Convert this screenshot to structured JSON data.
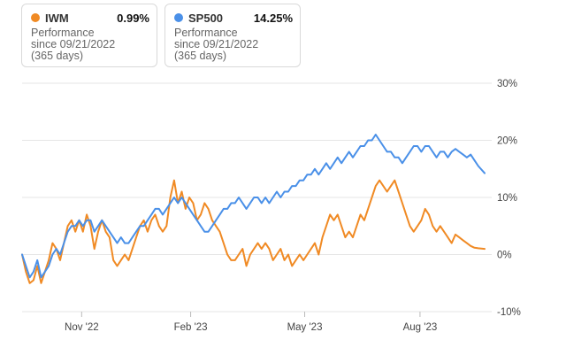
{
  "legend": [
    {
      "ticker": "IWM",
      "performance": "0.99%",
      "label": "Performance",
      "since": "since 09/21/2022",
      "days": "(365 days)",
      "color": "#f08a24"
    },
    {
      "ticker": "SP500",
      "performance": "14.25%",
      "label": "Performance",
      "since": "since 09/21/2022",
      "days": "(365 days)",
      "color": "#4a90e8"
    }
  ],
  "chart_data": {
    "type": "line",
    "x_ticks": [
      "Nov '22",
      "Feb '23",
      "May '23",
      "Aug '23"
    ],
    "y_ticks": [
      "30%",
      "20%",
      "10%",
      "0%",
      "-10%"
    ],
    "ylim": [
      -10,
      30
    ],
    "grid": true,
    "series": [
      {
        "name": "IWM",
        "color": "#f08a24",
        "points": [
          [
            0,
            0
          ],
          [
            3,
            -3
          ],
          [
            6,
            -5
          ],
          [
            9,
            -4.5
          ],
          [
            12,
            -2
          ],
          [
            15,
            -5
          ],
          [
            18,
            -3
          ],
          [
            21,
            -1
          ],
          [
            24,
            2
          ],
          [
            27,
            1
          ],
          [
            30,
            -1
          ],
          [
            33,
            2
          ],
          [
            36,
            5
          ],
          [
            39,
            6
          ],
          [
            42,
            4
          ],
          [
            45,
            6
          ],
          [
            48,
            4
          ],
          [
            51,
            7
          ],
          [
            54,
            5
          ],
          [
            57,
            1
          ],
          [
            60,
            4
          ],
          [
            63,
            6
          ],
          [
            66,
            4
          ],
          [
            69,
            3
          ],
          [
            72,
            -1
          ],
          [
            75,
            -2
          ],
          [
            78,
            -1
          ],
          [
            81,
            0
          ],
          [
            84,
            -1
          ],
          [
            87,
            1
          ],
          [
            90,
            3
          ],
          [
            93,
            5
          ],
          [
            96,
            6
          ],
          [
            99,
            4
          ],
          [
            102,
            6
          ],
          [
            105,
            7
          ],
          [
            108,
            5
          ],
          [
            111,
            4
          ],
          [
            114,
            5
          ],
          [
            117,
            10
          ],
          [
            120,
            13
          ],
          [
            123,
            9
          ],
          [
            126,
            11
          ],
          [
            129,
            8
          ],
          [
            132,
            10
          ],
          [
            135,
            9
          ],
          [
            138,
            6
          ],
          [
            141,
            7
          ],
          [
            144,
            9
          ],
          [
            147,
            8
          ],
          [
            150,
            6
          ],
          [
            153,
            5
          ],
          [
            156,
            4
          ],
          [
            159,
            2
          ],
          [
            162,
            0
          ],
          [
            165,
            -1
          ],
          [
            168,
            -1
          ],
          [
            171,
            0
          ],
          [
            174,
            1
          ],
          [
            177,
            -2
          ],
          [
            180,
            0
          ],
          [
            183,
            1
          ],
          [
            186,
            2
          ],
          [
            189,
            1
          ],
          [
            192,
            2
          ],
          [
            195,
            1
          ],
          [
            198,
            -1
          ],
          [
            201,
            0
          ],
          [
            204,
            1
          ],
          [
            207,
            -1
          ],
          [
            210,
            0
          ],
          [
            213,
            -2
          ],
          [
            216,
            -1
          ],
          [
            219,
            0
          ],
          [
            222,
            -1
          ],
          [
            225,
            0
          ],
          [
            228,
            1
          ],
          [
            231,
            2
          ],
          [
            234,
            0
          ],
          [
            237,
            3
          ],
          [
            240,
            5
          ],
          [
            243,
            7
          ],
          [
            246,
            6
          ],
          [
            249,
            7
          ],
          [
            252,
            5
          ],
          [
            255,
            3
          ],
          [
            258,
            4
          ],
          [
            261,
            3
          ],
          [
            264,
            5
          ],
          [
            267,
            7
          ],
          [
            270,
            6
          ],
          [
            273,
            8
          ],
          [
            276,
            10
          ],
          [
            279,
            12
          ],
          [
            282,
            13
          ],
          [
            285,
            12
          ],
          [
            288,
            11
          ],
          [
            291,
            12
          ],
          [
            294,
            13
          ],
          [
            297,
            11
          ],
          [
            300,
            9
          ],
          [
            303,
            7
          ],
          [
            306,
            5
          ],
          [
            309,
            4
          ],
          [
            312,
            5
          ],
          [
            315,
            6
          ],
          [
            318,
            8
          ],
          [
            321,
            7
          ],
          [
            324,
            5
          ],
          [
            327,
            4
          ],
          [
            330,
            5
          ],
          [
            333,
            4
          ],
          [
            336,
            3
          ],
          [
            339,
            2
          ],
          [
            342,
            3.5
          ],
          [
            345,
            3
          ],
          [
            348,
            2.5
          ],
          [
            351,
            2
          ],
          [
            354,
            1.5
          ],
          [
            357,
            1.2
          ],
          [
            360,
            1.1
          ],
          [
            365,
            0.99
          ]
        ]
      },
      {
        "name": "SP500",
        "color": "#4a90e8",
        "points": [
          [
            0,
            0
          ],
          [
            3,
            -2
          ],
          [
            6,
            -4
          ],
          [
            9,
            -3
          ],
          [
            12,
            -1
          ],
          [
            15,
            -4
          ],
          [
            18,
            -3
          ],
          [
            21,
            -2
          ],
          [
            24,
            0
          ],
          [
            27,
            1
          ],
          [
            30,
            0
          ],
          [
            33,
            2
          ],
          [
            36,
            4
          ],
          [
            39,
            5
          ],
          [
            42,
            5
          ],
          [
            45,
            6
          ],
          [
            48,
            5
          ],
          [
            51,
            6
          ],
          [
            54,
            6
          ],
          [
            57,
            4
          ],
          [
            60,
            5
          ],
          [
            63,
            6
          ],
          [
            66,
            5
          ],
          [
            69,
            4
          ],
          [
            72,
            3
          ],
          [
            75,
            2
          ],
          [
            78,
            3
          ],
          [
            81,
            2
          ],
          [
            84,
            2
          ],
          [
            87,
            3
          ],
          [
            90,
            4
          ],
          [
            93,
            5
          ],
          [
            96,
            5
          ],
          [
            99,
            6
          ],
          [
            102,
            7
          ],
          [
            105,
            8
          ],
          [
            108,
            8
          ],
          [
            111,
            7
          ],
          [
            114,
            8
          ],
          [
            117,
            9
          ],
          [
            120,
            10
          ],
          [
            123,
            9
          ],
          [
            126,
            10
          ],
          [
            129,
            9
          ],
          [
            132,
            8
          ],
          [
            135,
            7
          ],
          [
            138,
            6
          ],
          [
            141,
            5
          ],
          [
            144,
            4
          ],
          [
            147,
            4
          ],
          [
            150,
            5
          ],
          [
            153,
            6
          ],
          [
            156,
            7
          ],
          [
            159,
            8
          ],
          [
            162,
            8
          ],
          [
            165,
            9
          ],
          [
            168,
            9
          ],
          [
            171,
            10
          ],
          [
            174,
            9
          ],
          [
            177,
            8
          ],
          [
            180,
            9
          ],
          [
            183,
            10
          ],
          [
            186,
            10
          ],
          [
            189,
            9
          ],
          [
            192,
            10
          ],
          [
            195,
            9
          ],
          [
            198,
            10
          ],
          [
            201,
            11
          ],
          [
            204,
            10
          ],
          [
            207,
            11
          ],
          [
            210,
            11
          ],
          [
            213,
            12
          ],
          [
            216,
            12
          ],
          [
            219,
            13
          ],
          [
            222,
            13
          ],
          [
            225,
            14
          ],
          [
            228,
            14
          ],
          [
            231,
            15
          ],
          [
            234,
            14
          ],
          [
            237,
            15
          ],
          [
            240,
            16
          ],
          [
            243,
            15
          ],
          [
            246,
            16
          ],
          [
            249,
            17
          ],
          [
            252,
            16
          ],
          [
            255,
            17
          ],
          [
            258,
            18
          ],
          [
            261,
            17
          ],
          [
            264,
            18
          ],
          [
            267,
            19
          ],
          [
            270,
            19
          ],
          [
            273,
            20
          ],
          [
            276,
            20
          ],
          [
            279,
            21
          ],
          [
            282,
            20
          ],
          [
            285,
            19
          ],
          [
            288,
            18
          ],
          [
            291,
            18
          ],
          [
            294,
            17
          ],
          [
            297,
            17
          ],
          [
            300,
            16
          ],
          [
            303,
            17
          ],
          [
            306,
            18
          ],
          [
            309,
            19
          ],
          [
            312,
            19
          ],
          [
            315,
            18
          ],
          [
            318,
            19
          ],
          [
            321,
            19
          ],
          [
            324,
            18
          ],
          [
            327,
            17
          ],
          [
            330,
            18
          ],
          [
            333,
            18
          ],
          [
            336,
            17
          ],
          [
            339,
            18
          ],
          [
            342,
            18.5
          ],
          [
            345,
            18
          ],
          [
            348,
            17.5
          ],
          [
            351,
            17
          ],
          [
            354,
            17.5
          ],
          [
            357,
            16.5
          ],
          [
            360,
            15.5
          ],
          [
            365,
            14.25
          ]
        ]
      }
    ]
  }
}
